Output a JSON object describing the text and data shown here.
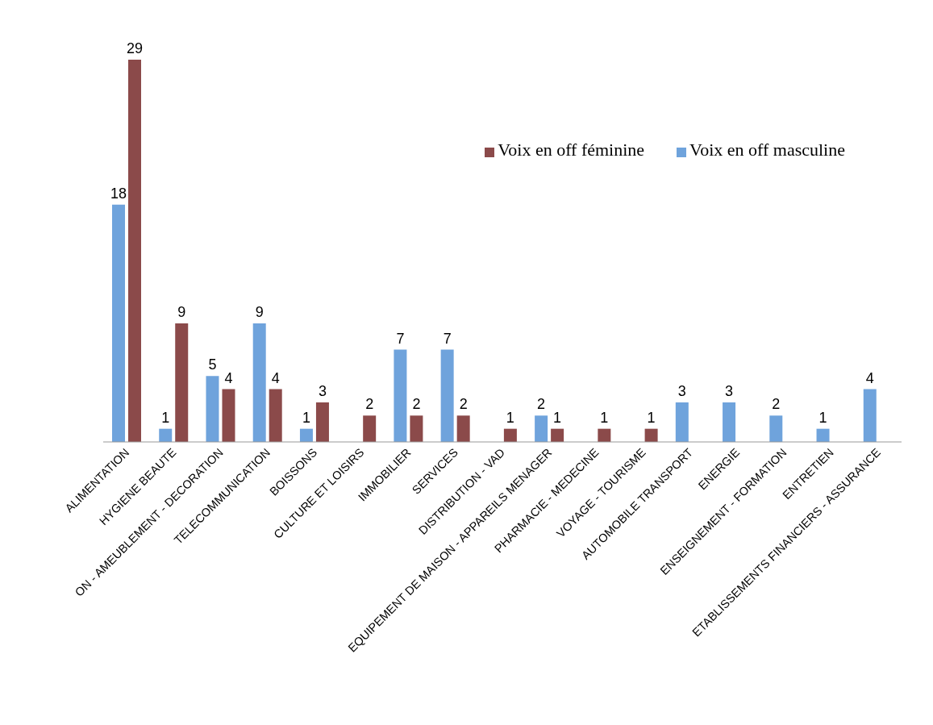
{
  "chart_data": {
    "type": "bar",
    "categories": [
      "ALIMENTATION",
      "HYGIENE BEAUTE",
      "ON - AMEUBLEMENT - DECORATION",
      "TELECOMMUNICATION",
      "BOISSONS",
      "CULTURE ET LOISIRS",
      "IMMOBILIER",
      "SERVICES",
      "DISTRIBUTION - VAD",
      "EQUIPEMENT DE MAISON - APPAREILS MENAGER",
      "PHARMACIE - MEDECINE",
      "VOYAGE - TOURISME",
      "AUTOMOBILE TRANSPORT",
      "ENERGIE",
      "ENSEIGNEMENT - FORMATION",
      "ENTRETIEN",
      "ETABLISSEMENTS FINANCIERS - ASSURANCE"
    ],
    "series": [
      {
        "name": "Voix en off masculine",
        "color": "#6fa3dc",
        "values": [
          18,
          1,
          5,
          9,
          1,
          null,
          7,
          7,
          null,
          2,
          null,
          null,
          3,
          3,
          2,
          1,
          4
        ]
      },
      {
        "name": "Voix en off féminine",
        "color": "#8b4a4a",
        "values": [
          29,
          9,
          4,
          4,
          3,
          2,
          2,
          2,
          1,
          1,
          1,
          1,
          null,
          null,
          null,
          null,
          null
        ]
      }
    ],
    "data_labels": true,
    "legend": "top right",
    "grid": false
  }
}
